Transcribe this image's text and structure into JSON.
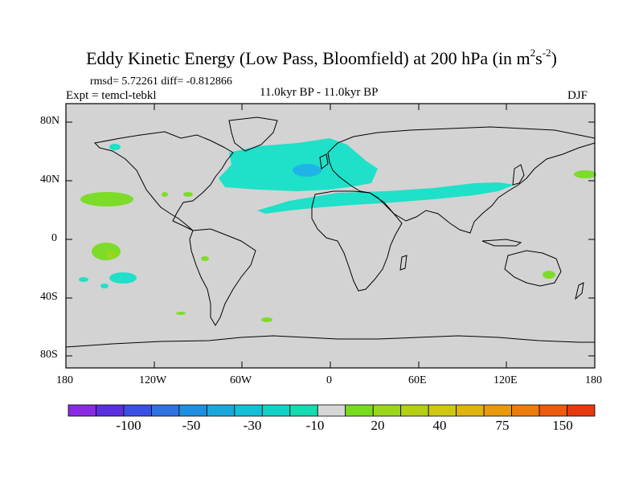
{
  "title": {
    "main": "Eddy Kinetic Energy (Low Pass, Bloomfield) at 200 hPa (in m",
    "sup1": "2",
    "mid": "s",
    "sup2": "-2",
    "end": ")"
  },
  "stats": "rmsd= 5.72261 diff= -0.812866",
  "expt": "Expt = temcl-tebkl",
  "period": "11.0kyr BP - 11.0kyr BP",
  "season": "DJF",
  "lat_labels": [
    "80N",
    "40N",
    "0",
    "40S",
    "80S"
  ],
  "lon_labels": [
    "180",
    "120W",
    "60W",
    "0",
    "60E",
    "120E",
    "180"
  ],
  "colorbar": {
    "colors": [
      "#8a2be2",
      "#5b2fe0",
      "#3a4fe6",
      "#2f72e2",
      "#1f8fe0",
      "#1aa8dc",
      "#14c0d8",
      "#12d2c8",
      "#16dab0",
      "#d6d6d6",
      "#78dc1e",
      "#9bd61a",
      "#b5cf14",
      "#cfc810",
      "#e0b40e",
      "#e89a0c",
      "#ec7c0c",
      "#ee5a0e",
      "#e8380f"
    ],
    "labels": [
      "-100",
      "-50",
      "-30",
      "-10",
      "20",
      "40",
      "75",
      "150"
    ]
  },
  "colors": {
    "land_ocean": "#d3d3d3",
    "cyan": "#1fe0c8",
    "blue": "#1fb4e6",
    "green": "#7ddc28"
  }
}
